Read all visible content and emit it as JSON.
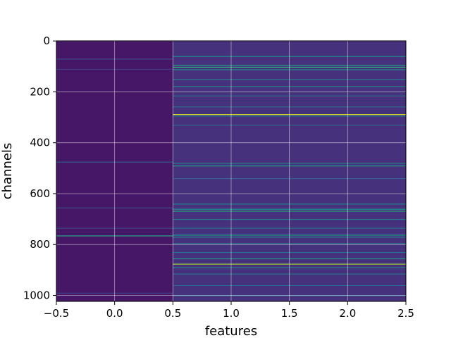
{
  "chart_data": {
    "type": "heatmap",
    "title": "",
    "xlabel": "features",
    "ylabel": "channels",
    "xlim": [
      -0.5,
      2.5
    ],
    "ylim": [
      1023.5,
      -0.5
    ],
    "x_ticks": [
      -0.5,
      0.0,
      0.5,
      1.0,
      1.5,
      2.0,
      2.5
    ],
    "x_tick_labels": [
      "−0.5",
      "0.0",
      "0.5",
      "1.0",
      "1.5",
      "2.0",
      "2.5"
    ],
    "y_ticks": [
      0,
      200,
      400,
      600,
      800,
      1000
    ],
    "y_tick_labels": [
      "0",
      "200",
      "400",
      "600",
      "800",
      "1000"
    ],
    "grid": true,
    "colormap": "viridis",
    "columns": [
      {
        "x": 0,
        "base_value": 0.06,
        "bright_rows": [
          {
            "row": 70,
            "value": 0.22
          },
          {
            "row": 110,
            "value": 0.18
          },
          {
            "row": 475,
            "value": 0.28
          },
          {
            "row": 655,
            "value": 0.22
          },
          {
            "row": 735,
            "value": 0.2
          },
          {
            "row": 765,
            "value": 0.6
          },
          {
            "row": 990,
            "value": 0.2
          }
        ]
      },
      {
        "x": 1,
        "base_value": 0.14,
        "bright_rows": [
          {
            "row": 60,
            "value": 0.45
          },
          {
            "row": 95,
            "value": 0.55
          },
          {
            "row": 102,
            "value": 0.65
          },
          {
            "row": 112,
            "value": 0.5
          },
          {
            "row": 150,
            "value": 0.4
          },
          {
            "row": 178,
            "value": 0.45
          },
          {
            "row": 215,
            "value": 0.35
          },
          {
            "row": 258,
            "value": 0.35
          },
          {
            "row": 288,
            "value": 0.95
          },
          {
            "row": 294,
            "value": 0.4
          },
          {
            "row": 330,
            "value": 0.3
          },
          {
            "row": 480,
            "value": 0.4
          },
          {
            "row": 490,
            "value": 0.55
          },
          {
            "row": 540,
            "value": 0.3
          },
          {
            "row": 640,
            "value": 0.45
          },
          {
            "row": 660,
            "value": 0.5
          },
          {
            "row": 668,
            "value": 0.6
          },
          {
            "row": 700,
            "value": 0.4
          },
          {
            "row": 735,
            "value": 0.35
          },
          {
            "row": 762,
            "value": 0.55
          },
          {
            "row": 770,
            "value": 0.45
          },
          {
            "row": 795,
            "value": 0.4
          },
          {
            "row": 830,
            "value": 0.35
          },
          {
            "row": 855,
            "value": 0.5
          },
          {
            "row": 876,
            "value": 0.85
          },
          {
            "row": 890,
            "value": 0.45
          },
          {
            "row": 915,
            "value": 0.35
          },
          {
            "row": 960,
            "value": 0.3
          },
          {
            "row": 1000,
            "value": 0.35
          }
        ]
      },
      {
        "x": 2,
        "base_value": 0.14,
        "bright_rows": [
          {
            "row": 60,
            "value": 0.45
          },
          {
            "row": 95,
            "value": 0.55
          },
          {
            "row": 102,
            "value": 0.65
          },
          {
            "row": 112,
            "value": 0.5
          },
          {
            "row": 150,
            "value": 0.4
          },
          {
            "row": 178,
            "value": 0.45
          },
          {
            "row": 215,
            "value": 0.35
          },
          {
            "row": 258,
            "value": 0.35
          },
          {
            "row": 288,
            "value": 0.95
          },
          {
            "row": 294,
            "value": 0.4
          },
          {
            "row": 330,
            "value": 0.3
          },
          {
            "row": 480,
            "value": 0.4
          },
          {
            "row": 490,
            "value": 0.55
          },
          {
            "row": 540,
            "value": 0.3
          },
          {
            "row": 640,
            "value": 0.45
          },
          {
            "row": 660,
            "value": 0.5
          },
          {
            "row": 668,
            "value": 0.6
          },
          {
            "row": 700,
            "value": 0.4
          },
          {
            "row": 735,
            "value": 0.35
          },
          {
            "row": 762,
            "value": 0.55
          },
          {
            "row": 770,
            "value": 0.45
          },
          {
            "row": 795,
            "value": 0.4
          },
          {
            "row": 830,
            "value": 0.35
          },
          {
            "row": 855,
            "value": 0.5
          },
          {
            "row": 876,
            "value": 0.85
          },
          {
            "row": 890,
            "value": 0.45
          },
          {
            "row": 915,
            "value": 0.35
          },
          {
            "row": 960,
            "value": 0.3
          },
          {
            "row": 1000,
            "value": 0.35
          }
        ]
      }
    ]
  }
}
